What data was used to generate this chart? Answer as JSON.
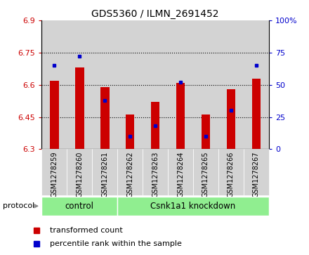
{
  "title": "GDS5360 / ILMN_2691452",
  "samples": [
    "GSM1278259",
    "GSM1278260",
    "GSM1278261",
    "GSM1278262",
    "GSM1278263",
    "GSM1278264",
    "GSM1278265",
    "GSM1278266",
    "GSM1278267"
  ],
  "red_values": [
    6.62,
    6.68,
    6.59,
    6.46,
    6.52,
    6.61,
    6.46,
    6.58,
    6.63
  ],
  "blue_values_pct": [
    65,
    72,
    38,
    10,
    18,
    52,
    10,
    30,
    65
  ],
  "ylim_left": [
    6.3,
    6.9
  ],
  "ylim_right": [
    0,
    100
  ],
  "yticks_left": [
    6.3,
    6.45,
    6.6,
    6.75,
    6.9
  ],
  "yticks_right": [
    0,
    25,
    50,
    75,
    100
  ],
  "ytick_labels_left": [
    "6.3",
    "6.45",
    "6.6",
    "6.75",
    "6.9"
  ],
  "ytick_labels_right": [
    "0",
    "25",
    "50",
    "75",
    "100%"
  ],
  "bar_width": 0.35,
  "red_color": "#cc0000",
  "blue_color": "#0000cc",
  "control_label": "control",
  "knockdown_label": "Csnk1a1 knockdown",
  "protocol_label": "protocol",
  "legend1": "transformed count",
  "legend2": "percentile rank within the sample",
  "control_count": 3,
  "bg_color": "#d3d3d3",
  "green_color": "#90ee90",
  "grid_vals": [
    6.45,
    6.6,
    6.75
  ]
}
